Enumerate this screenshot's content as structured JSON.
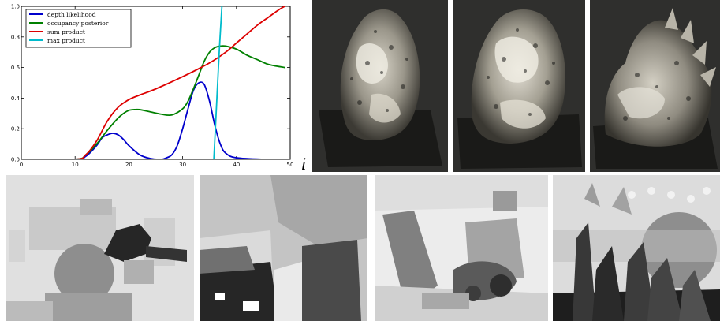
{
  "chart_data": {
    "type": "line",
    "title": "",
    "xlabel": "i",
    "ylabel": "",
    "xlim": [
      0,
      50
    ],
    "ylim": [
      0,
      1.0
    ],
    "x_ticks": [
      "0",
      "10",
      "20",
      "30",
      "40",
      "50"
    ],
    "y_ticks": [
      "0.0",
      "0.2",
      "0.4",
      "0.6",
      "0.8",
      "1.0"
    ],
    "grid": false,
    "legend_position": "top-left",
    "series": [
      {
        "name": "depth likelihood",
        "color": "#0000cc",
        "x": [
          0,
          10,
          12,
          14,
          15,
          16,
          17,
          18,
          19,
          20,
          22,
          24,
          26,
          27,
          28,
          29,
          30,
          31,
          32,
          33,
          34,
          35,
          36,
          37,
          38,
          40,
          45,
          50
        ],
        "y": [
          0,
          0,
          0.02,
          0.09,
          0.14,
          0.16,
          0.17,
          0.16,
          0.13,
          0.09,
          0.03,
          0.005,
          0,
          0.01,
          0.03,
          0.09,
          0.2,
          0.33,
          0.45,
          0.5,
          0.49,
          0.38,
          0.22,
          0.1,
          0.04,
          0.01,
          0,
          0
        ]
      },
      {
        "name": "occupancy posterior",
        "color": "#008000",
        "x": [
          0,
          10,
          12,
          14,
          16,
          18,
          19,
          20,
          21,
          22,
          24,
          26,
          28,
          30,
          31,
          32,
          33,
          34,
          35,
          36,
          37,
          38,
          40,
          42,
          44,
          46,
          49
        ],
        "y": [
          0,
          0,
          0.03,
          0.1,
          0.19,
          0.27,
          0.3,
          0.32,
          0.325,
          0.325,
          0.31,
          0.295,
          0.29,
          0.33,
          0.38,
          0.46,
          0.55,
          0.64,
          0.7,
          0.73,
          0.74,
          0.74,
          0.72,
          0.68,
          0.65,
          0.62,
          0.6
        ]
      },
      {
        "name": "sum product",
        "color": "#dd0000",
        "x": [
          0,
          10,
          12,
          14,
          16,
          18,
          20,
          22,
          25,
          30,
          35,
          38,
          40,
          42,
          44,
          46,
          48,
          49
        ],
        "y": [
          0,
          0,
          0.03,
          0.12,
          0.25,
          0.34,
          0.39,
          0.42,
          0.46,
          0.54,
          0.63,
          0.7,
          0.76,
          0.82,
          0.88,
          0.93,
          0.98,
          1.0
        ]
      },
      {
        "name": "max product",
        "color": "#00bbcc",
        "x": [
          35.8,
          36.3,
          36.8,
          37.3
        ],
        "y": [
          0.0,
          0.35,
          0.7,
          1.0
        ]
      }
    ]
  },
  "figures": {
    "renders": [
      "rendered-dinosaur-view-1",
      "rendered-dinosaur-view-2",
      "rendered-dinosaur-view-3"
    ],
    "depth_maps": [
      "depth-map-1",
      "depth-map-2",
      "depth-map-3",
      "depth-map-4"
    ]
  }
}
